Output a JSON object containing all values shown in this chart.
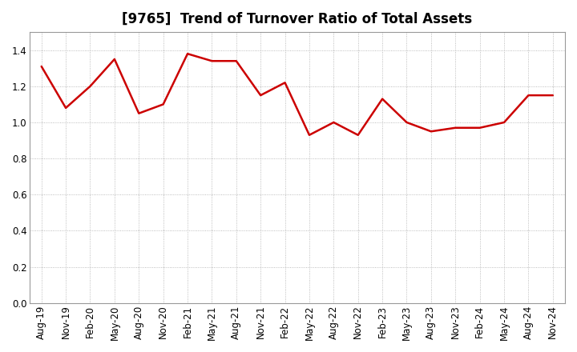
{
  "title": "[9765]  Trend of Turnover Ratio of Total Assets",
  "x_labels": [
    "Aug-19",
    "Nov-19",
    "Feb-20",
    "May-20",
    "Aug-20",
    "Nov-20",
    "Feb-21",
    "May-21",
    "Aug-21",
    "Nov-21",
    "Feb-22",
    "May-22",
    "Aug-22",
    "Nov-22",
    "Feb-23",
    "May-23",
    "Aug-23",
    "Nov-23",
    "Feb-24",
    "May-24",
    "Aug-24",
    "Nov-24"
  ],
  "y_values": [
    1.31,
    1.08,
    1.2,
    1.35,
    1.05,
    1.1,
    1.38,
    1.34,
    1.34,
    1.15,
    1.22,
    0.93,
    1.0,
    0.93,
    1.13,
    1.0,
    0.95,
    0.97,
    0.97,
    1.0,
    1.15,
    1.15
  ],
  "line_color": "#cc0000",
  "line_width": 1.8,
  "ylim": [
    0.0,
    1.5
  ],
  "yticks": [
    0.0,
    0.2,
    0.4,
    0.6,
    0.8,
    1.0,
    1.2,
    1.4
  ],
  "grid_color": "#aaaaaa",
  "grid_linestyle": "dotted",
  "bg_color": "#ffffff",
  "plot_bg_color": "#ffffff",
  "title_fontsize": 12,
  "tick_fontsize": 8.5
}
